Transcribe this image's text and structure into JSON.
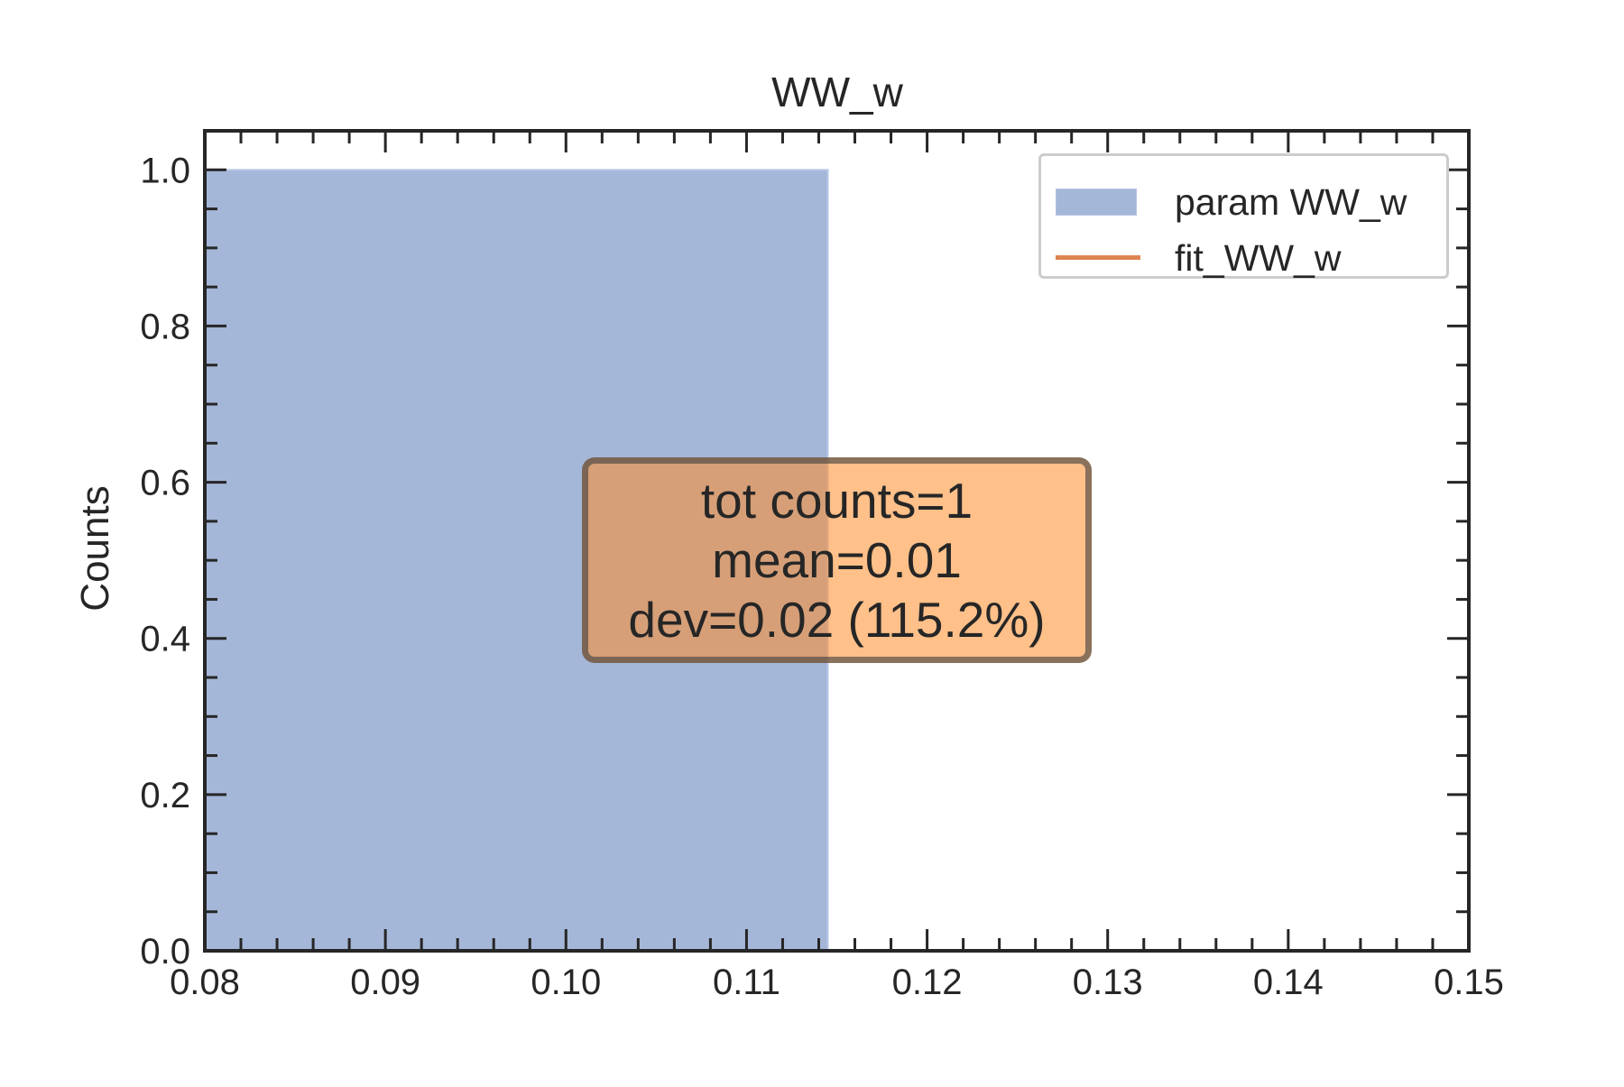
{
  "chart_data": {
    "type": "bar",
    "title": "WW_w",
    "xlabel": "",
    "ylabel": "Counts",
    "xlim": [
      0.08,
      0.15
    ],
    "ylim": [
      0.0,
      1.05
    ],
    "x_ticks": [
      "0.08",
      "0.09",
      "0.10",
      "0.11",
      "0.12",
      "0.13",
      "0.14",
      "0.15"
    ],
    "x_tick_values": [
      0.08,
      0.09,
      0.1,
      0.11,
      0.12,
      0.13,
      0.14,
      0.15
    ],
    "y_ticks": [
      "0.0",
      "0.2",
      "0.4",
      "0.6",
      "0.8",
      "1.0"
    ],
    "y_tick_values": [
      0.0,
      0.2,
      0.4,
      0.6,
      0.8,
      1.0
    ],
    "bins": [
      {
        "x_start": 0.0,
        "x_end": 0.1145,
        "count": 1
      }
    ],
    "series": [
      {
        "name": "param WW_w",
        "kind": "histogram",
        "color": "#a5b7d8"
      },
      {
        "name": "fit_WW_w",
        "kind": "line",
        "color": "#dd8452"
      }
    ],
    "legend_position": "top-right",
    "grid": false,
    "annotation": {
      "lines": [
        "tot counts=1",
        "mean=0.01",
        "dev=0.02 (115.2%)"
      ],
      "color": "#ff8c28"
    }
  }
}
